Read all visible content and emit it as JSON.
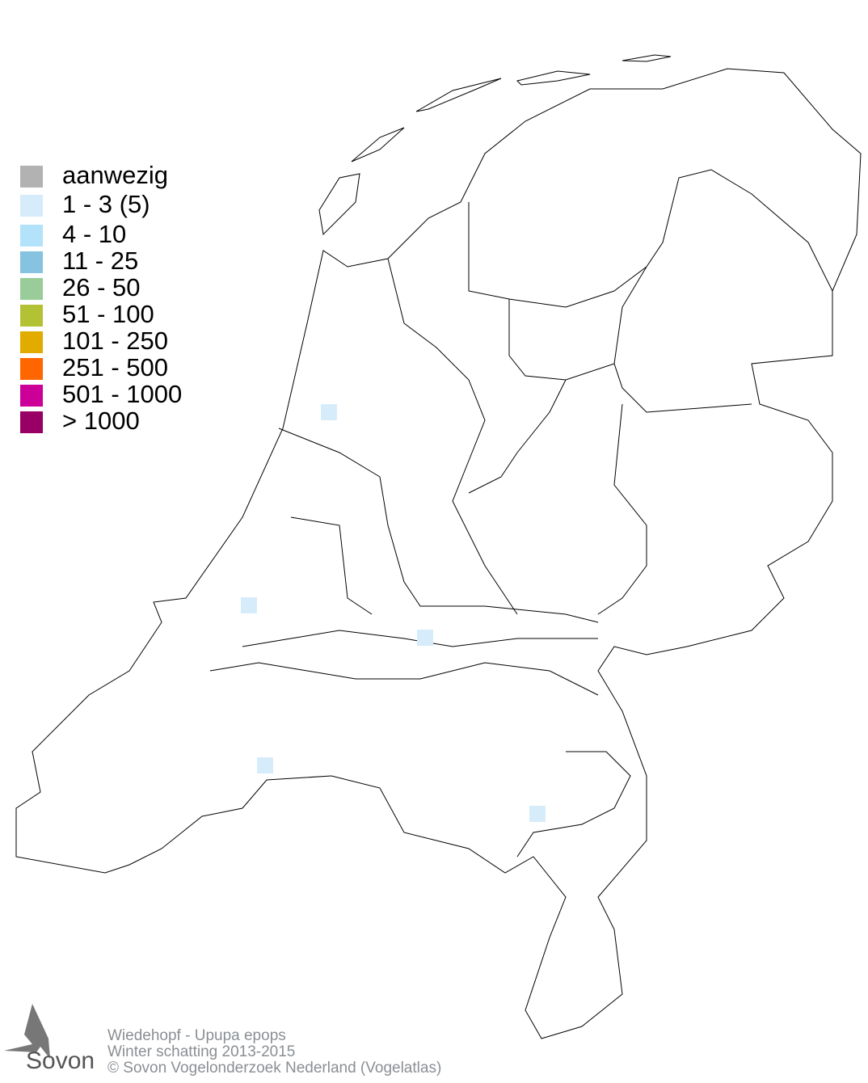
{
  "legend": {
    "items": [
      {
        "label": "aanwezig",
        "color": "#b2b2b2"
      },
      {
        "label": "1 - 3 (5)",
        "color": "#d6ecfa"
      },
      {
        "label": "4 - 10",
        "color": "#b3e3fa"
      },
      {
        "label": "11 - 25",
        "color": "#86c3e0"
      },
      {
        "label": "26 - 50",
        "color": "#99cc99"
      },
      {
        "label": "51 - 100",
        "color": "#b3c235"
      },
      {
        "label": "101 - 250",
        "color": "#e1ab00"
      },
      {
        "label": "251 - 500",
        "color": "#ff6600"
      },
      {
        "label": "501 - 1000",
        "color": "#cc0099"
      },
      {
        "label": "> 1000",
        "color": "#990066"
      }
    ]
  },
  "occupied_cells": [
    {
      "category": "1 - 3 (5)"
    },
    {
      "category": "1 - 3 (5)"
    },
    {
      "category": "1 - 3 (5)"
    },
    {
      "category": "1 - 3 (5)"
    },
    {
      "category": "1 - 3 (5)"
    }
  ],
  "footer": {
    "species": "Wiedehopf - Upupa epops",
    "period": "Winter schatting 2013-2015",
    "copyright": "© Sovon Vogelonderzoek Nederland (Vogelatlas)"
  },
  "logo": {
    "text": "Sovon"
  }
}
